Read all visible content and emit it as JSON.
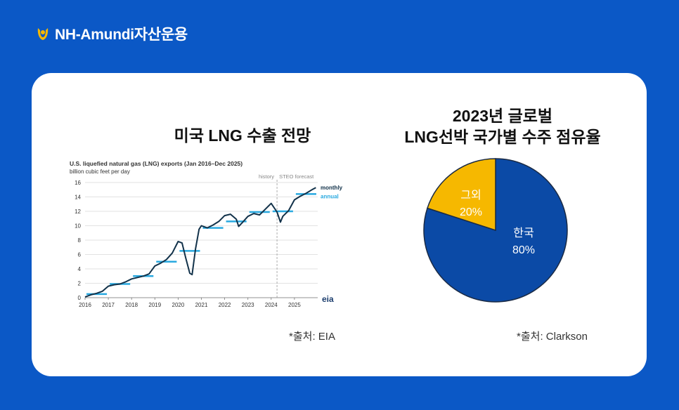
{
  "brand": {
    "name": "NH-Amundi자산운용",
    "logo_icon": "nh-logo-icon"
  },
  "colors": {
    "background": "#0b58c6",
    "pie_korea": "#0b4aa6",
    "pie_others": "#f6b800",
    "line": "#12324a",
    "annual": "#29a9e0"
  },
  "left": {
    "heading": "미국 LNG 수출 전망",
    "source": "*출처: EIA",
    "chart_data": {
      "type": "line",
      "title": "U.S. liquefied natural gas (LNG) exports (Jan 2016–Dec 2025)",
      "subtitle": "billion cubic feet per day",
      "x_ticks": [
        "2016",
        "2017",
        "2018",
        "2019",
        "2020",
        "2021",
        "2022",
        "2023",
        "2024",
        "2025"
      ],
      "y_ticks": [
        0,
        2,
        4,
        6,
        8,
        10,
        12,
        14,
        16
      ],
      "ylim": [
        0,
        16
      ],
      "xlim": [
        2016,
        2026
      ],
      "history_label": "history",
      "forecast_label": "STEO forecast",
      "forecast_start": 2024.25,
      "legend": [
        "monthly",
        "annual"
      ],
      "logo_text": "eia",
      "series": [
        {
          "name": "monthly",
          "x": [
            2016.0,
            2016.25,
            2016.5,
            2016.75,
            2017.0,
            2017.25,
            2017.5,
            2017.75,
            2018.0,
            2018.25,
            2018.5,
            2018.75,
            2019.0,
            2019.25,
            2019.5,
            2019.75,
            2020.0,
            2020.17,
            2020.33,
            2020.5,
            2020.6,
            2020.75,
            2020.9,
            2021.0,
            2021.25,
            2021.5,
            2021.75,
            2022.0,
            2022.25,
            2022.5,
            2022.6,
            2022.75,
            2023.0,
            2023.25,
            2023.5,
            2023.75,
            2024.0,
            2024.25,
            2024.4,
            2024.5,
            2024.75,
            2025.0,
            2025.25,
            2025.5,
            2025.75,
            2025.92
          ],
          "values": [
            0.1,
            0.4,
            0.6,
            0.9,
            1.6,
            1.8,
            1.9,
            2.2,
            2.6,
            2.8,
            3.0,
            3.3,
            4.4,
            4.8,
            5.3,
            6.2,
            7.8,
            7.6,
            5.5,
            3.4,
            3.2,
            6.8,
            9.5,
            10.0,
            9.7,
            10.1,
            10.6,
            11.4,
            11.6,
            10.9,
            9.9,
            10.4,
            11.3,
            11.7,
            11.5,
            12.3,
            13.1,
            11.9,
            10.5,
            11.3,
            12.1,
            13.6,
            14.1,
            14.5,
            15.0,
            15.3
          ]
        },
        {
          "name": "annual",
          "segments": [
            {
              "x0": 2016,
              "x1": 2017,
              "value": 0.5
            },
            {
              "x0": 2017,
              "x1": 2018,
              "value": 1.9
            },
            {
              "x0": 2018,
              "x1": 2019,
              "value": 3.0
            },
            {
              "x0": 2019,
              "x1": 2020,
              "value": 5.0
            },
            {
              "x0": 2020,
              "x1": 2021,
              "value": 6.5
            },
            {
              "x0": 2021,
              "x1": 2022,
              "value": 9.7
            },
            {
              "x0": 2022,
              "x1": 2023,
              "value": 10.6
            },
            {
              "x0": 2023,
              "x1": 2024,
              "value": 11.9
            },
            {
              "x0": 2024,
              "x1": 2025,
              "value": 12.0
            },
            {
              "x0": 2025,
              "x1": 2026,
              "value": 14.4
            }
          ]
        }
      ]
    }
  },
  "right": {
    "heading_line1": "2023년 글로벌",
    "heading_line2": "LNG선박 국가별 수주 점유율",
    "source": "*출처: Clarkson",
    "chart_data": {
      "type": "pie",
      "labels": [
        "한국",
        "그외"
      ],
      "values": [
        80,
        20
      ],
      "value_labels": [
        "80%",
        "20%"
      ]
    }
  }
}
